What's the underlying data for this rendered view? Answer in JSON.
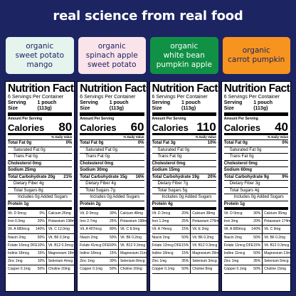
{
  "headline": "real science from real food",
  "flavors": [
    {
      "label": "organic\nsweet potato\nmango",
      "bg": "#e6f4ee",
      "fg": "#1c2462"
    },
    {
      "label": "organic\nspinach apple\nsweet potato",
      "bg": "#fbe3ea",
      "fg": "#1c2462"
    },
    {
      "label": "organic\nwhite bean\npumpkin apple",
      "bg": "#109145",
      "fg": "#ffffff"
    },
    {
      "label": "organic\ncarrot pumpkin",
      "bg": "#f7941f",
      "fg": "#1c2462"
    }
  ],
  "labels": {
    "title": "Nutrition Facts",
    "servings": "6 Servings Per Container",
    "serving_size": "Serving Size",
    "serving_size_value": "1 pouch (113g)",
    "amount": "Amount Per Serving",
    "calories": "Calories",
    "dv": "% Daily Value"
  },
  "panels": [
    {
      "calories": "80",
      "rows": [
        {
          "cls": "",
          "label": "Total Fat 0g",
          "dv": "0%"
        },
        {
          "cls": "ind1",
          "label": "Saturated Fat 0g",
          "dv": ""
        },
        {
          "cls": "ind1",
          "label": "Trans Fat 0g",
          "dv": ""
        },
        {
          "cls": "",
          "label": "Cholesterol 0mg",
          "dv": ""
        },
        {
          "cls": "",
          "label": "Sodium 25mg",
          "dv": ""
        },
        {
          "cls": "",
          "label": "Total Carbohydrate 20g",
          "dv": "21%"
        },
        {
          "cls": "ind1",
          "label": "Dietary Fiber 4g",
          "dv": ""
        },
        {
          "cls": "ind1",
          "label": "Total Sugars 8g",
          "dv": ""
        },
        {
          "cls": "ind2",
          "label": "Includes 0g Added Sugars",
          "dv": ""
        },
        {
          "cls": "thick",
          "label": "Protein 1g",
          "dv": ""
        }
      ],
      "vitamins": [
        [
          "Vit. D 0mcg",
          "0%"
        ],
        [
          "Calcium 26mg",
          "10%"
        ],
        [
          "Iron 0.3mg",
          "20%"
        ],
        [
          "Potassium 198mg",
          "70%"
        ],
        [
          "Vit. A 689mcg",
          "140%"
        ],
        [
          "Vit. C 12.0mg",
          "40%"
        ],
        [
          "Niacin 2mg",
          "50%"
        ],
        [
          "Vit. B6 0.3mg",
          "100%"
        ],
        [
          "Folate 16mcg DFE",
          "10%"
        ],
        [
          "Vit. B12 0.3mcg",
          "70%"
        ],
        [
          "Iodine 18mcg",
          "15%"
        ],
        [
          "Magnesium 18mg",
          "25%"
        ],
        [
          "Zinc 1mg",
          "10%"
        ],
        [
          "Selenium 4mcg",
          "20%"
        ],
        [
          "Copper 0.1mg",
          "50%"
        ],
        [
          "Choline 20mg",
          "15%"
        ]
      ]
    },
    {
      "calories": "60",
      "rows": [
        {
          "cls": "",
          "label": "Total Fat 0g",
          "dv": "0%"
        },
        {
          "cls": "ind1",
          "label": "Saturated Fat 0g",
          "dv": ""
        },
        {
          "cls": "ind1",
          "label": "Trans Fat 0g",
          "dv": ""
        },
        {
          "cls": "",
          "label": "Cholesterol 0mg",
          "dv": ""
        },
        {
          "cls": "",
          "label": "Sodium 30mg",
          "dv": ""
        },
        {
          "cls": "",
          "label": "Total Carbohydrate 15g",
          "dv": "16%"
        },
        {
          "cls": "ind1",
          "label": "Dietary Fiber 4g",
          "dv": ""
        },
        {
          "cls": "ind1",
          "label": "Total Sugars 7g",
          "dv": ""
        },
        {
          "cls": "ind2",
          "label": "Includes 0g Added Sugars",
          "dv": ""
        },
        {
          "cls": "thick",
          "label": "Protein 2g",
          "dv": ""
        }
      ],
      "vitamins": [
        [
          "Vit. D 0mcg",
          "30%"
        ],
        [
          "Calcium 48mg",
          "20%"
        ],
        [
          "Iron 2.7mg",
          "25%"
        ],
        [
          "Potassium 198mg",
          "50%"
        ],
        [
          "Vit. A 407mcg",
          "80%"
        ],
        [
          "Vit. C 8.0mg",
          "20%"
        ],
        [
          "Niacin 2mg",
          "50%"
        ],
        [
          "Vit. B6 0.2mg",
          "70%"
        ],
        [
          "Folate 41mcg DFE",
          "60%"
        ],
        [
          "Vit. B12 0.3mcg",
          "70%"
        ],
        [
          "Iodine 18mcg",
          "15%"
        ],
        [
          "Magnesium 31mg",
          "15%"
        ],
        [
          "Zinc 1mg",
          "30%"
        ],
        [
          "Selenium 8mcg",
          "25%"
        ],
        [
          "Copper 0.1mg",
          "50%"
        ],
        [
          "Choline 20mg",
          "15%"
        ]
      ]
    },
    {
      "calories": "110",
      "rows": [
        {
          "cls": "",
          "label": "Total Fat 3g",
          "dv": "10%"
        },
        {
          "cls": "ind1",
          "label": "Saturated Fat 0g",
          "dv": ""
        },
        {
          "cls": "ind1",
          "label": "Trans Fat 0g",
          "dv": ""
        },
        {
          "cls": "",
          "label": "Cholesterol 0mg",
          "dv": ""
        },
        {
          "cls": "",
          "label": "Sodium 15mg",
          "dv": ""
        },
        {
          "cls": "",
          "label": "Total Carbohydrate 19g",
          "dv": "20%"
        },
        {
          "cls": "ind1",
          "label": "Dietary Fiber 7g",
          "dv": ""
        },
        {
          "cls": "ind1",
          "label": "Total Sugars 5g",
          "dv": ""
        },
        {
          "cls": "ind2",
          "label": "Includes 0g Added Sugars",
          "dv": ""
        },
        {
          "cls": "thick",
          "label": "Protein 4g",
          "dv": ""
        }
      ],
      "vitamins": [
        [
          "Vit. D 2mcg",
          "20%"
        ],
        [
          "Calcium 38mg",
          "15%"
        ],
        [
          "Iron 1.3mg",
          "25%"
        ],
        [
          "Potassium 276mg",
          "40%"
        ],
        [
          "Vit. A 74mcg",
          "15%"
        ],
        [
          "Vit. E 2mg",
          "40%"
        ],
        [
          "Niacin 2mg",
          "50%"
        ],
        [
          "Vit. B6 0.2mg",
          "70%"
        ],
        [
          "Folate 12mcg DFE",
          "15%"
        ],
        [
          "Vit. B12 0.3mcg",
          "70%"
        ],
        [
          "Iodine 18mcg",
          "15%"
        ],
        [
          "Magnesium 28mg",
          "20%"
        ],
        [
          "Zinc 1mg",
          "35%"
        ],
        [
          "Selenium 3mcg",
          "15%"
        ],
        [
          "Copper 0.1mg",
          "50%"
        ],
        [
          "Choline 8mg",
          "6%"
        ]
      ]
    },
    {
      "calories": "40",
      "rows": [
        {
          "cls": "",
          "label": "Total Fat 0g",
          "dv": "0%"
        },
        {
          "cls": "ind1",
          "label": "Saturated Fat 0g",
          "dv": ""
        },
        {
          "cls": "ind1",
          "label": "Trans Fat 0g",
          "dv": ""
        },
        {
          "cls": "",
          "label": "Cholesterol 0mg",
          "dv": ""
        },
        {
          "cls": "",
          "label": "Sodium 60mg",
          "dv": ""
        },
        {
          "cls": "",
          "label": "Total Carbohydrate 9g",
          "dv": "9%"
        },
        {
          "cls": "ind1",
          "label": "Dietary Fiber 3g",
          "dv": ""
        },
        {
          "cls": "ind1",
          "label": "Total Sugars 4g",
          "dv": ""
        },
        {
          "cls": "ind2",
          "label": "Includes 0g Added Sugars",
          "dv": ""
        },
        {
          "cls": "thick",
          "label": "Protein 1g",
          "dv": ""
        }
      ],
      "vitamins": [
        [
          "Vit. D 0mcg",
          "30%"
        ],
        [
          "Calcium 35mg",
          "15%"
        ],
        [
          "Iron 3mg",
          "20%"
        ],
        [
          "Potassium 174mg",
          "15%"
        ],
        [
          "Vit. A 680mcg",
          "140%"
        ],
        [
          "Vit. C 9mg",
          "15%"
        ],
        [
          "Niacin 2mg",
          "50%"
        ],
        [
          "Vit. B6 0.2mg",
          "70%"
        ],
        [
          "Folate 11mcg DFE",
          "15%"
        ],
        [
          "Vit. B12 0.3mcg",
          "70%"
        ],
        [
          "Iodine 11mcg",
          "50%"
        ],
        [
          "Magnesium 13mg",
          "15%"
        ],
        [
          "Zinc 1mg",
          "35%"
        ],
        [
          "Selenium 5mcg",
          "25%"
        ],
        [
          "Copper 0.1mg",
          "50%"
        ],
        [
          "Choline 15mg",
          "15%"
        ]
      ]
    }
  ]
}
